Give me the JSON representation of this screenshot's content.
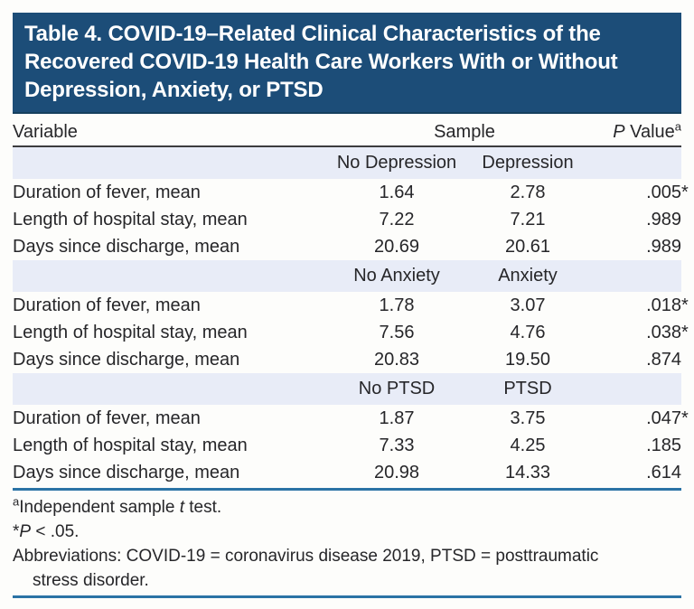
{
  "title": "Table 4. COVID-19–Related Clinical Characteristics of the Recovered COVID-19 Health Care Workers With or Without Depression, Anxiety, or PTSD",
  "columns": {
    "variable": "Variable",
    "sample": "Sample",
    "p_label_italic": "P",
    "p_label_rest": " Value",
    "p_label_sup": "a"
  },
  "sections": [
    {
      "group_no": "No Depression",
      "group_yes": "Depression",
      "rows": [
        {
          "label": "Duration of fever, mean",
          "no": "1.64",
          "yes": "2.78",
          "p": ".005",
          "sig": "*"
        },
        {
          "label": "Length of hospital stay, mean",
          "no": "7.22",
          "yes": "7.21",
          "p": ".989",
          "sig": ""
        },
        {
          "label": "Days since discharge, mean",
          "no": "20.69",
          "yes": "20.61",
          "p": ".989",
          "sig": ""
        }
      ]
    },
    {
      "group_no": "No Anxiety",
      "group_yes": "Anxiety",
      "rows": [
        {
          "label": "Duration of fever, mean",
          "no": "1.78",
          "yes": "3.07",
          "p": ".018",
          "sig": "*"
        },
        {
          "label": "Length of hospital stay, mean",
          "no": "7.56",
          "yes": "4.76",
          "p": ".038",
          "sig": "*"
        },
        {
          "label": "Days since discharge, mean",
          "no": "20.83",
          "yes": "19.50",
          "p": ".874",
          "sig": ""
        }
      ]
    },
    {
      "group_no": "No PTSD",
      "group_yes": "PTSD",
      "rows": [
        {
          "label": "Duration of fever, mean",
          "no": "1.87",
          "yes": "3.75",
          "p": ".047",
          "sig": "*"
        },
        {
          "label": "Length of hospital stay, mean",
          "no": "7.33",
          "yes": "4.25",
          "p": ".185",
          "sig": ""
        },
        {
          "label": "Days since discharge, mean",
          "no": "20.98",
          "yes": "14.33",
          "p": ".614",
          "sig": ""
        }
      ]
    }
  ],
  "footnotes": {
    "independent_sup": "a",
    "independent_pre": "Independent sample ",
    "independent_italic": "t",
    "independent_post": " test.",
    "sig_star": "*",
    "sig_italic": "P",
    "sig_post": " < .05.",
    "abbrev_line1": "Abbreviations: COVID-19 = coronavirus disease 2019, PTSD = posttraumatic",
    "abbrev_line2": "stress disorder."
  },
  "colors": {
    "title_bg": "#1c4d78",
    "title_edge": "#16405e",
    "band_bg": "#e8ecf7",
    "rule_dark": "#3c3c3e",
    "rule_blue": "#2b73a5"
  }
}
